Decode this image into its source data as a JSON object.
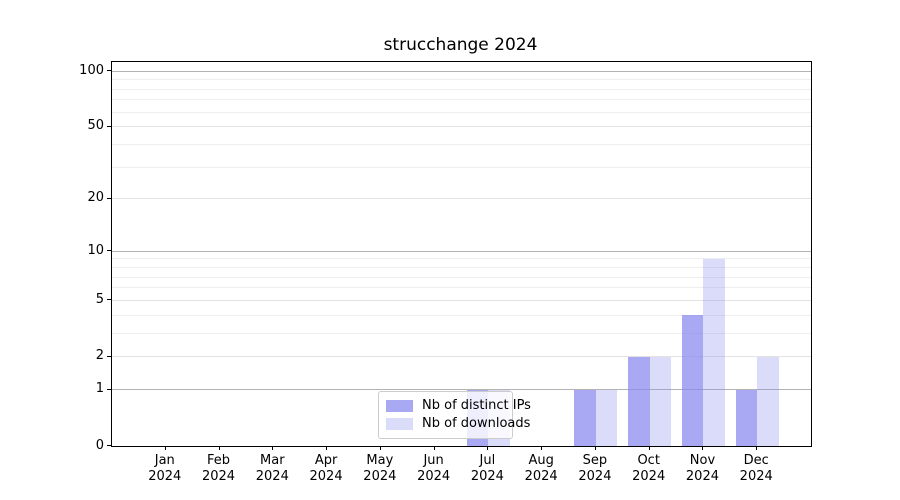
{
  "chart_data": {
    "type": "bar",
    "title": "strucchange 2024",
    "categories": [
      "Jan",
      "Feb",
      "Mar",
      "Apr",
      "May",
      "Jun",
      "Jul",
      "Aug",
      "Sep",
      "Oct",
      "Nov",
      "Dec"
    ],
    "category_year": "2024",
    "series": [
      {
        "name": "Nb of distinct IPs",
        "color": "rgba(136,136,238,0.72)",
        "values": [
          0,
          0,
          0,
          0,
          0,
          0,
          1,
          0,
          1,
          2,
          4,
          1
        ]
      },
      {
        "name": "Nb of downloads",
        "color": "rgba(136,136,238,0.30)",
        "values": [
          0,
          0,
          0,
          0,
          0,
          0,
          1,
          0,
          1,
          2,
          9,
          2
        ]
      }
    ],
    "xlabel": "",
    "ylabel": "",
    "scale": "log1p",
    "ylim": [
      0,
      112
    ],
    "yticks": [
      0,
      1,
      2,
      5,
      10,
      20,
      50,
      100
    ],
    "grid": {
      "decade_lines": [
        1,
        10,
        100
      ],
      "mid_lines": [
        2,
        5,
        20,
        50
      ],
      "minor_lines": [
        3,
        4,
        6,
        7,
        8,
        9,
        30,
        40,
        60,
        70,
        80,
        90
      ],
      "decade_color": "#b3b3b3",
      "mid_color": "#e2e2e2",
      "minor_color": "#eeeeee"
    },
    "legend": {
      "position": "bottom-center",
      "frame_color": "#cccccc"
    },
    "bar_width_units": 0.4,
    "xlim_units": [
      -1,
      12
    ]
  }
}
